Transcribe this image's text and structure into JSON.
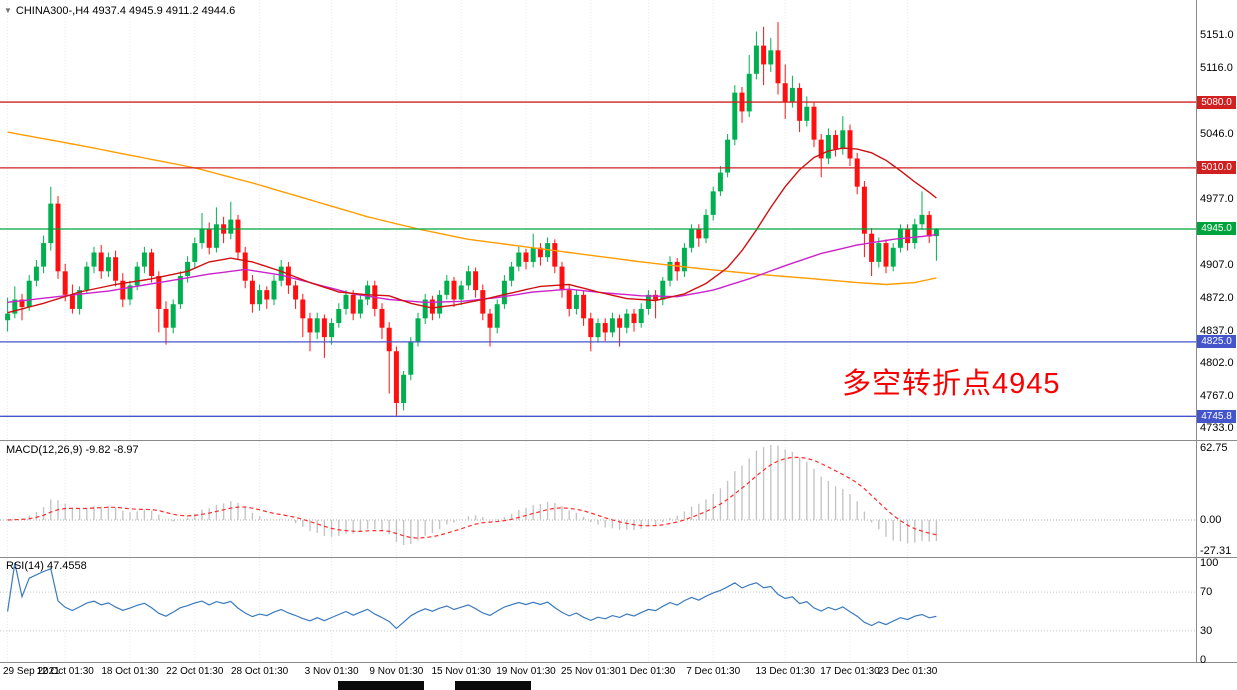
{
  "header": {
    "collapse_icon": "▼",
    "title": "CHINA300-,H4 4937.4 4945.9 4911.2 4944.6"
  },
  "annotation": {
    "text": "多空转折点4945",
    "color": "#f80000"
  },
  "indicators": {
    "macd": {
      "label": "MACD(12,26,9) -9.82 -8.97",
      "fast": 12,
      "slow": 26,
      "signal": 9,
      "main_value": "-9.82",
      "signal_value": "-8.97",
      "axis_labels": [
        "62.75",
        "0.00",
        "-27.31"
      ],
      "histogram_color": "#c4c4c4",
      "signal_color": "#ff2a2a"
    },
    "rsi": {
      "label": "RSI(14) 47.4558",
      "period": 14,
      "value": "47.4558",
      "axis_labels": [
        "100",
        "70",
        "30",
        "0"
      ],
      "levels": [
        70,
        30
      ],
      "line_color": "#3a7abf"
    }
  },
  "price_axis": {
    "ticks": [
      {
        "label": "5151.0",
        "price": 5151
      },
      {
        "label": "5116.0",
        "price": 5116
      },
      {
        "label": "5046.0",
        "price": 5046
      },
      {
        "label": "4977.0",
        "price": 4977
      },
      {
        "label": "4907.0",
        "price": 4907
      },
      {
        "label": "4872.0",
        "price": 4872
      },
      {
        "label": "4837.0",
        "price": 4837
      },
      {
        "label": "4802.0",
        "price": 4802
      },
      {
        "label": "4767.0",
        "price": 4767
      },
      {
        "label": "4733.0",
        "price": 4733
      }
    ],
    "badges": [
      {
        "label": "5080.0",
        "price": 5080,
        "color": "#d02020"
      },
      {
        "label": "5010.0",
        "price": 5010,
        "color": "#d02020"
      },
      {
        "label": "4945.0",
        "price": 4945,
        "color": "#00a43c"
      },
      {
        "label": "4825.0",
        "price": 4825,
        "color": "#4455cc"
      },
      {
        "label": "4745.8",
        "price": 4745.8,
        "color": "#4455cc"
      }
    ]
  },
  "time_axis": {
    "labels": [
      {
        "text": "29 Sep 2021",
        "i": 0
      },
      {
        "text": "12 Oct 01:30",
        "i": 8
      },
      {
        "text": "18 Oct 01:30",
        "i": 17
      },
      {
        "text": "22 Oct 01:30",
        "i": 26
      },
      {
        "text": "28 Oct 01:30",
        "i": 35
      },
      {
        "text": "3 Nov 01:30",
        "i": 45
      },
      {
        "text": "9 Nov 01:30",
        "i": 54
      },
      {
        "text": "15 Nov 01:30",
        "i": 63
      },
      {
        "text": "19 Nov 01:30",
        "i": 72
      },
      {
        "text": "25 Nov 01:30",
        "i": 81
      },
      {
        "text": "1 Dec 01:30",
        "i": 89
      },
      {
        "text": "7 Dec 01:30",
        "i": 98
      },
      {
        "text": "13 Dec 01:30",
        "i": 108
      },
      {
        "text": "17 Dec 01:30",
        "i": 117
      },
      {
        "text": "23 Dec 01:30",
        "i": 125
      }
    ]
  },
  "chart_data": {
    "type": "candlestick",
    "title": "CHINA300- H4",
    "y_range": [
      4727,
      5180
    ],
    "up_color": "#00b050",
    "down_color": "#ff1010",
    "grid_color": "#e8e8e8",
    "hlines": [
      {
        "price": 5080,
        "color": "#d02020"
      },
      {
        "price": 5010,
        "color": "#d02020"
      },
      {
        "price": 4945,
        "color": "#00a43c"
      },
      {
        "price": 4825,
        "color": "#4455cc"
      },
      {
        "price": 4745.8,
        "color": "#4455cc"
      }
    ],
    "moving_averages": [
      {
        "name": "ma-slow-orange",
        "color": "#ff9c00",
        "points": [
          [
            0,
            5048
          ],
          [
            10,
            5034
          ],
          [
            18,
            5022
          ],
          [
            26,
            5010
          ],
          [
            34,
            4994
          ],
          [
            42,
            4976
          ],
          [
            50,
            4958
          ],
          [
            57,
            4945
          ],
          [
            64,
            4934
          ],
          [
            72,
            4926
          ],
          [
            80,
            4918
          ],
          [
            88,
            4910
          ],
          [
            96,
            4903
          ],
          [
            104,
            4897
          ],
          [
            112,
            4892
          ],
          [
            118,
            4888
          ],
          [
            122,
            4886
          ],
          [
            126,
            4888
          ],
          [
            129,
            4893
          ]
        ]
      },
      {
        "name": "ma-mid-magenta",
        "color": "#cc22cc",
        "points": [
          [
            0,
            4867
          ],
          [
            8,
            4874
          ],
          [
            14,
            4879
          ],
          [
            21,
            4888
          ],
          [
            28,
            4897
          ],
          [
            33,
            4902
          ],
          [
            38,
            4896
          ],
          [
            43,
            4886
          ],
          [
            48,
            4876
          ],
          [
            53,
            4870
          ],
          [
            58,
            4867
          ],
          [
            63,
            4868
          ],
          [
            68,
            4872
          ],
          [
            73,
            4878
          ],
          [
            78,
            4881
          ],
          [
            83,
            4877
          ],
          [
            88,
            4874
          ],
          [
            93,
            4873
          ],
          [
            98,
            4880
          ],
          [
            103,
            4892
          ],
          [
            108,
            4906
          ],
          [
            113,
            4919
          ],
          [
            118,
            4928
          ],
          [
            123,
            4934
          ],
          [
            127,
            4937
          ],
          [
            129,
            4939
          ]
        ]
      },
      {
        "name": "ma-fast-red",
        "color": "#d01010",
        "points": [
          [
            0,
            4856
          ],
          [
            5,
            4866
          ],
          [
            10,
            4878
          ],
          [
            15,
            4886
          ],
          [
            20,
            4892
          ],
          [
            25,
            4900
          ],
          [
            28,
            4910
          ],
          [
            31,
            4914
          ],
          [
            34,
            4910
          ],
          [
            38,
            4900
          ],
          [
            42,
            4888
          ],
          [
            46,
            4878
          ],
          [
            50,
            4875
          ],
          [
            53,
            4874
          ],
          [
            56,
            4866
          ],
          [
            59,
            4861
          ],
          [
            62,
            4864
          ],
          [
            66,
            4870
          ],
          [
            70,
            4877
          ],
          [
            74,
            4884
          ],
          [
            78,
            4886
          ],
          [
            82,
            4878
          ],
          [
            86,
            4871
          ],
          [
            90,
            4869
          ],
          [
            94,
            4876
          ],
          [
            97,
            4887
          ],
          [
            100,
            4904
          ],
          [
            102,
            4922
          ],
          [
            104,
            4944
          ],
          [
            106,
            4968
          ],
          [
            108,
            4990
          ],
          [
            110,
            5008
          ],
          [
            112,
            5021
          ],
          [
            114,
            5028
          ],
          [
            116,
            5031
          ],
          [
            118,
            5030
          ],
          [
            120,
            5026
          ],
          [
            122,
            5018
          ],
          [
            124,
            5007
          ],
          [
            126,
            4995
          ],
          [
            128,
            4984
          ],
          [
            129,
            4978
          ]
        ]
      }
    ],
    "ohlc": [
      [
        4848,
        4872,
        4836,
        4855
      ],
      [
        4855,
        4884,
        4850,
        4870
      ],
      [
        4870,
        4876,
        4848,
        4862
      ],
      [
        4862,
        4896,
        4858,
        4890
      ],
      [
        4890,
        4912,
        4884,
        4905
      ],
      [
        4905,
        4938,
        4898,
        4930
      ],
      [
        4930,
        4990,
        4922,
        4972
      ],
      [
        4972,
        4980,
        4892,
        4900
      ],
      [
        4900,
        4908,
        4868,
        4875
      ],
      [
        4875,
        4886,
        4855,
        4860
      ],
      [
        4860,
        4884,
        4854,
        4880
      ],
      [
        4880,
        4910,
        4876,
        4905
      ],
      [
        4905,
        4926,
        4898,
        4920
      ],
      [
        4920,
        4928,
        4892,
        4900
      ],
      [
        4900,
        4920,
        4894,
        4915
      ],
      [
        4915,
        4922,
        4884,
        4890
      ],
      [
        4890,
        4898,
        4862,
        4870
      ],
      [
        4870,
        4890,
        4864,
        4885
      ],
      [
        4885,
        4910,
        4880,
        4905
      ],
      [
        4905,
        4926,
        4898,
        4920
      ],
      [
        4920,
        4924,
        4888,
        4895
      ],
      [
        4895,
        4900,
        4835,
        4860
      ],
      [
        4860,
        4868,
        4822,
        4840
      ],
      [
        4840,
        4870,
        4834,
        4865
      ],
      [
        4865,
        4900,
        4860,
        4895
      ],
      [
        4895,
        4916,
        4888,
        4910
      ],
      [
        4910,
        4936,
        4904,
        4930
      ],
      [
        4930,
        4962,
        4924,
        4945
      ],
      [
        4945,
        4952,
        4918,
        4925
      ],
      [
        4925,
        4968,
        4920,
        4950
      ],
      [
        4950,
        4958,
        4930,
        4940
      ],
      [
        4940,
        4974,
        4934,
        4955
      ],
      [
        4955,
        4960,
        4912,
        4920
      ],
      [
        4920,
        4926,
        4882,
        4890
      ],
      [
        4890,
        4896,
        4856,
        4865
      ],
      [
        4865,
        4886,
        4858,
        4880
      ],
      [
        4880,
        4884,
        4860,
        4870
      ],
      [
        4870,
        4896,
        4864,
        4890
      ],
      [
        4890,
        4912,
        4884,
        4905
      ],
      [
        4905,
        4910,
        4876,
        4885
      ],
      [
        4885,
        4890,
        4860,
        4870
      ],
      [
        4870,
        4876,
        4830,
        4850
      ],
      [
        4850,
        4856,
        4815,
        4835
      ],
      [
        4835,
        4856,
        4828,
        4850
      ],
      [
        4850,
        4854,
        4808,
        4830
      ],
      [
        4830,
        4850,
        4822,
        4845
      ],
      [
        4845,
        4866,
        4840,
        4860
      ],
      [
        4860,
        4880,
        4854,
        4875
      ],
      [
        4875,
        4880,
        4848,
        4855
      ],
      [
        4855,
        4876,
        4850,
        4870
      ],
      [
        4870,
        4890,
        4864,
        4885
      ],
      [
        4885,
        4890,
        4852,
        4860
      ],
      [
        4860,
        4866,
        4828,
        4840
      ],
      [
        4840,
        4846,
        4770,
        4815
      ],
      [
        4815,
        4820,
        4745.8,
        4760
      ],
      [
        4760,
        4794,
        4752,
        4790
      ],
      [
        4790,
        4830,
        4784,
        4825
      ],
      [
        4825,
        4856,
        4820,
        4850
      ],
      [
        4850,
        4876,
        4844,
        4870
      ],
      [
        4870,
        4874,
        4848,
        4855
      ],
      [
        4855,
        4880,
        4850,
        4875
      ],
      [
        4875,
        4896,
        4870,
        4890
      ],
      [
        4890,
        4894,
        4862,
        4870
      ],
      [
        4870,
        4890,
        4864,
        4885
      ],
      [
        4885,
        4906,
        4880,
        4900
      ],
      [
        4900,
        4904,
        4872,
        4880
      ],
      [
        4880,
        4886,
        4848,
        4855
      ],
      [
        4855,
        4860,
        4820,
        4840
      ],
      [
        4840,
        4870,
        4834,
        4865
      ],
      [
        4865,
        4896,
        4860,
        4890
      ],
      [
        4890,
        4910,
        4884,
        4905
      ],
      [
        4905,
        4926,
        4900,
        4920
      ],
      [
        4920,
        4924,
        4902,
        4910
      ],
      [
        4910,
        4940,
        4904,
        4925
      ],
      [
        4925,
        4930,
        4906,
        4915
      ],
      [
        4915,
        4936,
        4910,
        4930
      ],
      [
        4930,
        4934,
        4898,
        4905
      ],
      [
        4905,
        4910,
        4872,
        4880
      ],
      [
        4880,
        4886,
        4852,
        4860
      ],
      [
        4860,
        4880,
        4854,
        4875
      ],
      [
        4875,
        4880,
        4842,
        4850
      ],
      [
        4850,
        4856,
        4815,
        4830
      ],
      [
        4830,
        4850,
        4824,
        4845
      ],
      [
        4845,
        4850,
        4826,
        4835
      ],
      [
        4835,
        4856,
        4830,
        4850
      ],
      [
        4850,
        4854,
        4820,
        4840
      ],
      [
        4840,
        4860,
        4834,
        4855
      ],
      [
        4855,
        4860,
        4836,
        4845
      ],
      [
        4845,
        4866,
        4840,
        4860
      ],
      [
        4860,
        4880,
        4854,
        4875
      ],
      [
        4875,
        4880,
        4850,
        4870
      ],
      [
        4870,
        4894,
        4864,
        4890
      ],
      [
        4890,
        4916,
        4884,
        4910
      ],
      [
        4910,
        4914,
        4890,
        4900
      ],
      [
        4900,
        4930,
        4894,
        4925
      ],
      [
        4925,
        4950,
        4920,
        4945
      ],
      [
        4945,
        4950,
        4926,
        4935
      ],
      [
        4935,
        4966,
        4930,
        4960
      ],
      [
        4960,
        4990,
        4954,
        4985
      ],
      [
        4985,
        5012,
        4980,
        5005
      ],
      [
        5005,
        5046,
        5000,
        5040
      ],
      [
        5040,
        5098,
        5034,
        5090
      ],
      [
        5090,
        5096,
        5058,
        5070
      ],
      [
        5070,
        5130,
        5064,
        5110
      ],
      [
        5110,
        5155,
        5104,
        5140
      ],
      [
        5140,
        5160,
        5098,
        5120
      ],
      [
        5120,
        5148,
        5112,
        5135
      ],
      [
        5135,
        5165,
        5088,
        5100
      ],
      [
        5100,
        5120,
        5062,
        5080
      ],
      [
        5080,
        5108,
        5074,
        5095
      ],
      [
        5095,
        5100,
        5048,
        5060
      ],
      [
        5060,
        5086,
        5054,
        5075
      ],
      [
        5075,
        5080,
        5032,
        5040
      ],
      [
        5040,
        5046,
        5000,
        5020
      ],
      [
        5020,
        5052,
        5014,
        5045
      ],
      [
        5045,
        5050,
        5022,
        5030
      ],
      [
        5030,
        5065,
        5024,
        5050
      ],
      [
        5050,
        5056,
        5012,
        5020
      ],
      [
        5020,
        5026,
        4982,
        4990
      ],
      [
        4990,
        4996,
        4915,
        4940
      ],
      [
        4940,
        4946,
        4895,
        4910
      ],
      [
        4910,
        4936,
        4904,
        4930
      ],
      [
        4930,
        4934,
        4898,
        4905
      ],
      [
        4905,
        4930,
        4900,
        4925
      ],
      [
        4925,
        4950,
        4920,
        4945
      ],
      [
        4945,
        4950,
        4922,
        4930
      ],
      [
        4930,
        4956,
        4924,
        4950
      ],
      [
        4950,
        4985,
        4944,
        4960
      ],
      [
        4960,
        4964,
        4930,
        4937
      ],
      [
        4937.4,
        4945.9,
        4911.2,
        4944.6
      ]
    ]
  }
}
